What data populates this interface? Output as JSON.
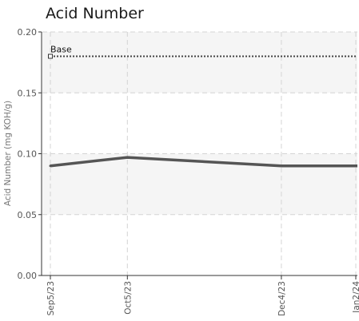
{
  "chart_data": {
    "type": "line",
    "title": "Acid Number",
    "ylabel": "Acid Number (mg KOH/g)",
    "xlabel": "",
    "ylim": [
      0,
      0.2
    ],
    "y_ticks": [
      "0.00",
      "0.05",
      "0.10",
      "0.15",
      "0.20"
    ],
    "y_tick_values": [
      0.0,
      0.05,
      0.1,
      0.15,
      0.2
    ],
    "x": [
      "Sep5/23",
      "Oct5/23",
      "Dec4/23",
      "Jan2/24"
    ],
    "x_day_offsets": [
      0,
      30,
      90,
      119
    ],
    "series": [
      {
        "values": [
          0.09,
          0.097,
          0.09,
          0.09
        ],
        "color": "#555555"
      }
    ],
    "reference_lines": [
      {
        "label": "Base",
        "value": 0.18,
        "style": "dotted",
        "color": "#444444"
      }
    ],
    "bands": [
      {
        "from": 0.05,
        "to": 0.1,
        "color": "#f5f5f5"
      },
      {
        "from": 0.15,
        "to": 0.2,
        "color": "#f5f5f5"
      }
    ],
    "grid": true
  }
}
